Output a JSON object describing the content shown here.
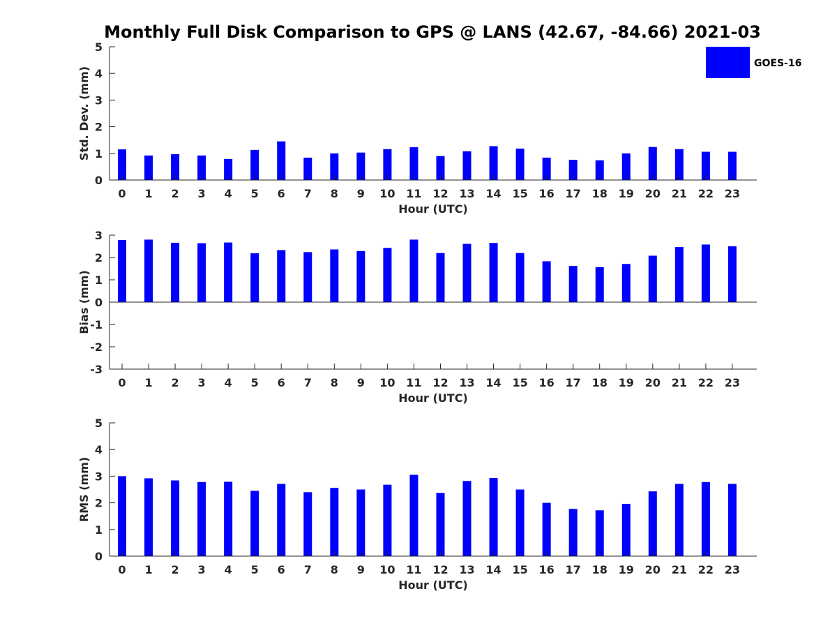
{
  "title": "Monthly Full Disk Comparison to GPS @ LANS (42.67, -84.66) 2021-03",
  "legend": {
    "label": "GOES-16",
    "color": "#0000ff"
  },
  "chart_data": [
    {
      "type": "bar",
      "name": "std",
      "xlabel": "Hour (UTC)",
      "ylabel": "Std. Dev. (mm)",
      "categories": [
        "0",
        "1",
        "2",
        "3",
        "4",
        "5",
        "6",
        "7",
        "8",
        "9",
        "10",
        "11",
        "12",
        "13",
        "14",
        "15",
        "16",
        "17",
        "18",
        "19",
        "20",
        "21",
        "22",
        "23"
      ],
      "ylim": [
        0,
        5
      ],
      "yticks": [
        "0",
        "1",
        "2",
        "3",
        "4",
        "5"
      ],
      "series": [
        {
          "name": "GOES-16",
          "values": [
            1.15,
            0.92,
            0.97,
            0.92,
            0.79,
            1.13,
            1.45,
            0.84,
            1.0,
            1.03,
            1.16,
            1.23,
            0.9,
            1.08,
            1.27,
            1.18,
            0.84,
            0.76,
            0.74,
            1.0,
            1.24,
            1.16,
            1.06,
            1.06
          ]
        }
      ]
    },
    {
      "type": "bar",
      "name": "bias",
      "xlabel": "Hour (UTC)",
      "ylabel": "Bias (mm)",
      "categories": [
        "0",
        "1",
        "2",
        "3",
        "4",
        "5",
        "6",
        "7",
        "8",
        "9",
        "10",
        "11",
        "12",
        "13",
        "14",
        "15",
        "16",
        "17",
        "18",
        "19",
        "20",
        "21",
        "22",
        "23"
      ],
      "ylim": [
        -3,
        3
      ],
      "yticks": [
        "-3",
        "-2",
        "-1",
        "0",
        "1",
        "2",
        "3"
      ],
      "series": [
        {
          "name": "GOES-16",
          "values": [
            2.78,
            2.8,
            2.66,
            2.64,
            2.67,
            2.19,
            2.33,
            2.24,
            2.36,
            2.29,
            2.43,
            2.8,
            2.2,
            2.61,
            2.65,
            2.2,
            1.83,
            1.62,
            1.57,
            1.71,
            2.08,
            2.47,
            2.58,
            2.5
          ]
        }
      ]
    },
    {
      "type": "bar",
      "name": "rms",
      "xlabel": "Hour (UTC)",
      "ylabel": "RMS (mm)",
      "categories": [
        "0",
        "1",
        "2",
        "3",
        "4",
        "5",
        "6",
        "7",
        "8",
        "9",
        "10",
        "11",
        "12",
        "13",
        "14",
        "15",
        "16",
        "17",
        "18",
        "19",
        "20",
        "21",
        "22",
        "23"
      ],
      "ylim": [
        0,
        5
      ],
      "yticks": [
        "0",
        "1",
        "2",
        "3",
        "4",
        "5"
      ],
      "series": [
        {
          "name": "GOES-16",
          "values": [
            3.0,
            2.92,
            2.84,
            2.78,
            2.79,
            2.45,
            2.71,
            2.4,
            2.56,
            2.5,
            2.68,
            3.05,
            2.37,
            2.82,
            2.93,
            2.5,
            2.0,
            1.77,
            1.72,
            1.96,
            2.43,
            2.71,
            2.78,
            2.71
          ]
        }
      ]
    }
  ]
}
